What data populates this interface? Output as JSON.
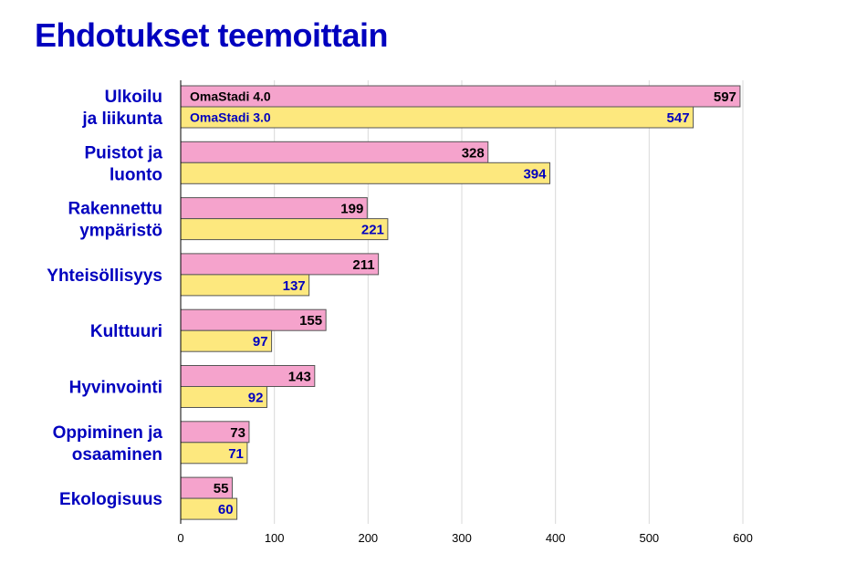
{
  "colors": {
    "title": "#0000bf",
    "category_label": "#0000bf",
    "grid": "#d9d9d9",
    "axis": "#000000",
    "bar_outline": "#555555"
  },
  "chart_data": {
    "type": "bar",
    "orientation": "horizontal",
    "title": "Ehdotukset teemoittain",
    "xlabel": "",
    "ylabel": "",
    "xlim": [
      0,
      600
    ],
    "xticks": [
      0,
      100,
      200,
      300,
      400,
      500,
      600
    ],
    "grid": true,
    "legend_placement": "inside first bars, left",
    "categories": [
      [
        "Ulkoilu",
        "ja liikunta"
      ],
      [
        "Puistot ja",
        "luonto"
      ],
      [
        "Rakennettu",
        "ympäristö"
      ],
      [
        "Yhteisöllisyys"
      ],
      [
        "Kulttuuri"
      ],
      [
        "Hyvinvointi"
      ],
      [
        "Oppiminen ja",
        "osaaminen"
      ],
      [
        "Ekologisuus"
      ]
    ],
    "series": [
      {
        "name": "OmaStadi 4.0",
        "color": "#f5a3cc",
        "label_color": "#000000",
        "values": [
          597,
          328,
          199,
          211,
          155,
          143,
          73,
          55
        ]
      },
      {
        "name": "OmaStadi 3.0",
        "color": "#fde87e",
        "label_color": "#0000bf",
        "values": [
          547,
          394,
          221,
          137,
          97,
          92,
          71,
          60
        ]
      }
    ]
  }
}
